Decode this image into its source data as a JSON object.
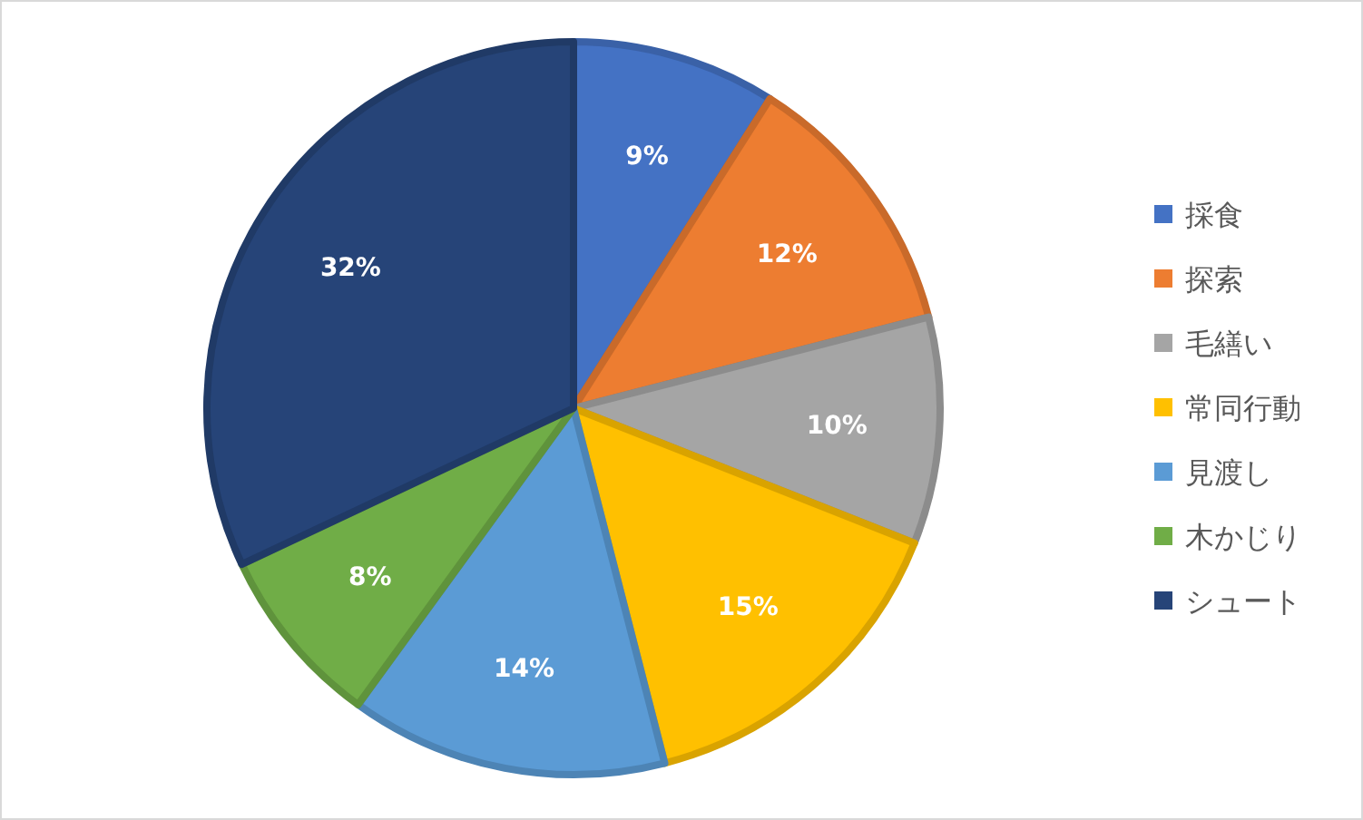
{
  "chart_data": {
    "type": "pie",
    "categories": [
      "採食",
      "探索",
      "毛繕い",
      "常同行動",
      "見渡し",
      "木かじり",
      "シュート"
    ],
    "values": [
      9,
      12,
      10,
      15,
      14,
      8,
      32
    ],
    "value_labels": [
      "9%",
      "12%",
      "10%",
      "15%",
      "14%",
      "8%",
      "32%"
    ],
    "colors": [
      "#4472c4",
      "#ed7d31",
      "#a5a5a5",
      "#ffc000",
      "#5b9bd5",
      "#70ad47",
      "#264478"
    ],
    "legend": "right"
  }
}
